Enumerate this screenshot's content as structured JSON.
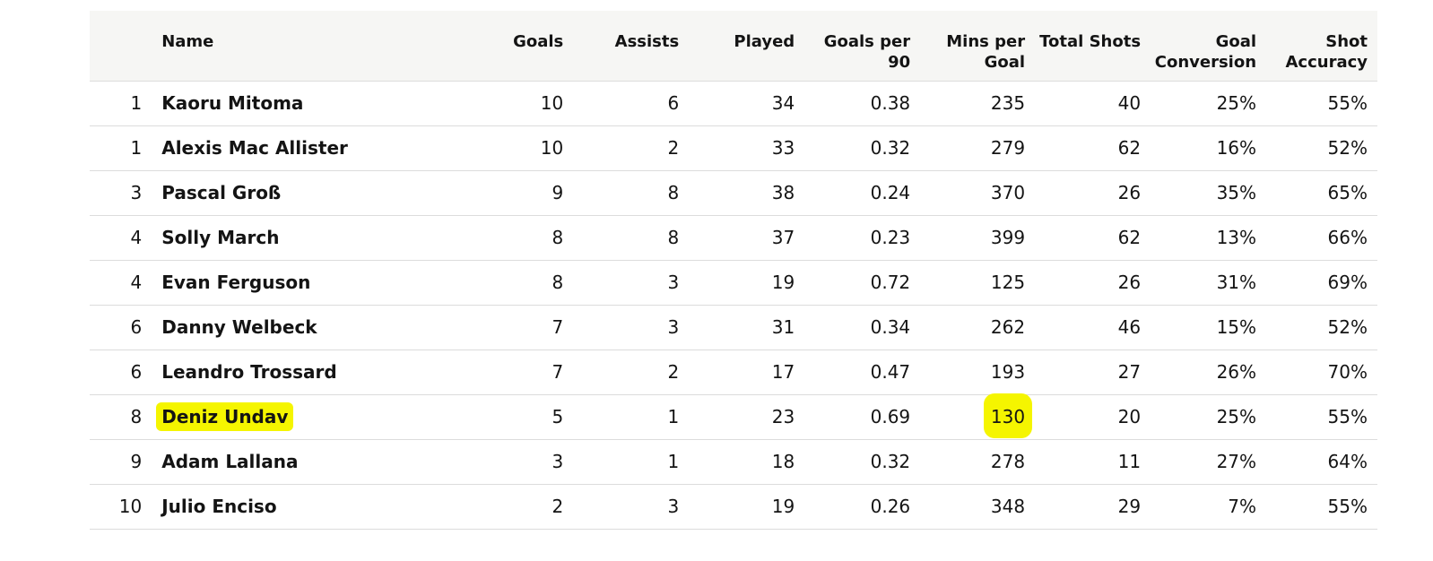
{
  "columns": [
    "",
    "Name",
    "Goals",
    "Assists",
    "Played",
    "Goals per 90",
    "Mins per Goal",
    "Total Shots",
    "Goal Conversion",
    "Shot Accuracy"
  ],
  "header_lines": {
    "mins_per_goal": [
      "Mins per",
      "Goal"
    ],
    "goal_conversion": [
      "Goal",
      "Conversion"
    ],
    "shot_accuracy": [
      "Shot",
      "Accuracy"
    ]
  },
  "highlight_color": "#f5f500",
  "rows": [
    {
      "rank": "1",
      "name": "Kaoru Mitoma",
      "goals": "10",
      "assists": "6",
      "played": "34",
      "gp90": "0.38",
      "mpg": "235",
      "shots": "40",
      "conv": "25%",
      "acc": "55%"
    },
    {
      "rank": "1",
      "name": "Alexis Mac Allister",
      "goals": "10",
      "assists": "2",
      "played": "33",
      "gp90": "0.32",
      "mpg": "279",
      "shots": "62",
      "conv": "16%",
      "acc": "52%"
    },
    {
      "rank": "3",
      "name": "Pascal Groß",
      "goals": "9",
      "assists": "8",
      "played": "38",
      "gp90": "0.24",
      "mpg": "370",
      "shots": "26",
      "conv": "35%",
      "acc": "65%"
    },
    {
      "rank": "4",
      "name": "Solly March",
      "goals": "8",
      "assists": "8",
      "played": "37",
      "gp90": "0.23",
      "mpg": "399",
      "shots": "62",
      "conv": "13%",
      "acc": "66%"
    },
    {
      "rank": "4",
      "name": "Evan Ferguson",
      "goals": "8",
      "assists": "3",
      "played": "19",
      "gp90": "0.72",
      "mpg": "125",
      "shots": "26",
      "conv": "31%",
      "acc": "69%"
    },
    {
      "rank": "6",
      "name": "Danny Welbeck",
      "goals": "7",
      "assists": "3",
      "played": "31",
      "gp90": "0.34",
      "mpg": "262",
      "shots": "46",
      "conv": "15%",
      "acc": "52%"
    },
    {
      "rank": "6",
      "name": "Leandro Trossard",
      "goals": "7",
      "assists": "2",
      "played": "17",
      "gp90": "0.47",
      "mpg": "193",
      "shots": "27",
      "conv": "26%",
      "acc": "70%"
    },
    {
      "rank": "8",
      "name": "Deniz Undav",
      "goals": "5",
      "assists": "1",
      "played": "23",
      "gp90": "0.69",
      "mpg": "130",
      "shots": "20",
      "conv": "25%",
      "acc": "55%"
    },
    {
      "rank": "9",
      "name": "Adam Lallana",
      "goals": "3",
      "assists": "1",
      "played": "18",
      "gp90": "0.32",
      "mpg": "278",
      "shots": "11",
      "conv": "27%",
      "acc": "64%"
    },
    {
      "rank": "10",
      "name": "Julio Enciso",
      "goals": "2",
      "assists": "3",
      "played": "19",
      "gp90": "0.26",
      "mpg": "348",
      "shots": "29",
      "conv": "7%",
      "acc": "55%"
    }
  ]
}
